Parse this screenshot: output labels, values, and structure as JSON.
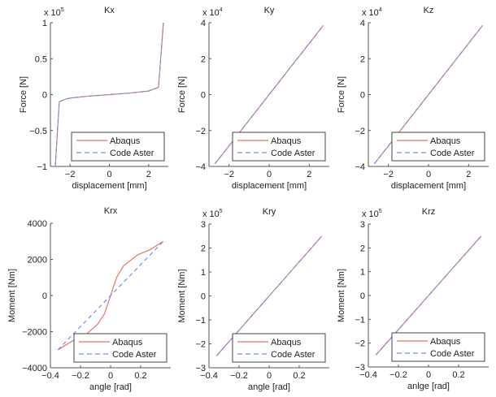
{
  "figure": {
    "colors": {
      "abaqus": "#e8776b",
      "code_aster": "#6b8ff0",
      "axis": "#555555",
      "legend_border": "#444444"
    }
  },
  "chart_data": [
    {
      "id": "kx",
      "type": "line",
      "title": "Kx",
      "xlabel": "displacement [mm]",
      "ylabel": "Force [N]",
      "y_multiplier_label": "x 10",
      "y_multiplier_exp": "5",
      "xlim": [
        -3,
        3
      ],
      "ylim": [
        -1,
        1
      ],
      "xticks": [
        -2,
        0,
        2
      ],
      "xtick_labels": [
        "−2",
        "0",
        "2"
      ],
      "yticks": [
        -1,
        -0.5,
        0,
        0.5,
        1
      ],
      "ytick_labels": [
        "−1",
        "−0.5",
        "0",
        "0.5",
        "1"
      ],
      "grid": false,
      "legend": {
        "position": "bottom-right",
        "entries": [
          "Abaqus",
          "Code Aster"
        ]
      },
      "series": [
        {
          "name": "Abaqus",
          "style": "solid",
          "x": [
            -2.75,
            -2.55,
            -2.2,
            -1.9,
            -1.0,
            0,
            1.0,
            2.0,
            2.5,
            2.75
          ],
          "y": [
            -1.0,
            -0.1,
            -0.06,
            -0.045,
            -0.02,
            0,
            0.02,
            0.05,
            0.1,
            1.0
          ]
        },
        {
          "name": "Code Aster",
          "style": "dashed",
          "x": [
            -2.75,
            -2.55,
            -2.2,
            -1.9,
            -1.0,
            0,
            1.0,
            2.0,
            2.5,
            2.75
          ],
          "y": [
            -1.0,
            -0.1,
            -0.06,
            -0.045,
            -0.02,
            0,
            0.02,
            0.05,
            0.1,
            1.0
          ]
        }
      ]
    },
    {
      "id": "ky",
      "type": "line",
      "title": "Ky",
      "xlabel": "displacement [mm]",
      "ylabel": "Force [N]",
      "y_multiplier_label": "x 10",
      "y_multiplier_exp": "4",
      "xlim": [
        -3,
        3
      ],
      "ylim": [
        -4,
        4
      ],
      "xticks": [
        -2,
        0,
        2
      ],
      "xtick_labels": [
        "−2",
        "0",
        "2"
      ],
      "yticks": [
        -4,
        -2,
        0,
        2,
        4
      ],
      "ytick_labels": [
        "−4",
        "−2",
        "0",
        "2",
        "4"
      ],
      "grid": false,
      "legend": {
        "position": "bottom-right",
        "entries": [
          "Abaqus",
          "Code Aster"
        ]
      },
      "series": [
        {
          "name": "Abaqus",
          "style": "solid",
          "x": [
            -2.7,
            2.7
          ],
          "y": [
            -3.85,
            3.85
          ]
        },
        {
          "name": "Code Aster",
          "style": "dashed",
          "x": [
            -2.7,
            2.7
          ],
          "y": [
            -3.85,
            3.85
          ]
        }
      ]
    },
    {
      "id": "kz",
      "type": "line",
      "title": "Kz",
      "xlabel": "displacement [mm]",
      "ylabel": "Force [N]",
      "y_multiplier_label": "x 10",
      "y_multiplier_exp": "4",
      "xlim": [
        -3,
        3
      ],
      "ylim": [
        -4,
        4
      ],
      "xticks": [
        -2,
        0,
        2
      ],
      "xtick_labels": [
        "−2",
        "0",
        "2"
      ],
      "yticks": [
        -4,
        -2,
        0,
        2,
        4
      ],
      "ytick_labels": [
        "−4",
        "−2",
        "0",
        "2",
        "4"
      ],
      "grid": false,
      "legend": {
        "position": "bottom-right",
        "entries": [
          "Abaqus",
          "Code Aster"
        ]
      },
      "series": [
        {
          "name": "Abaqus",
          "style": "solid",
          "x": [
            -2.7,
            2.7
          ],
          "y": [
            -3.85,
            3.85
          ]
        },
        {
          "name": "Code Aster",
          "style": "dashed",
          "x": [
            -2.7,
            2.7
          ],
          "y": [
            -3.85,
            3.85
          ]
        }
      ]
    },
    {
      "id": "krx",
      "type": "line",
      "title": "Krx",
      "xlabel": "angle [rad]",
      "ylabel": "Moment [Nm]",
      "y_multiplier_label": "",
      "y_multiplier_exp": "",
      "xlim": [
        -0.4,
        0.4
      ],
      "ylim": [
        -4000,
        4000
      ],
      "xticks": [
        -0.4,
        -0.2,
        0,
        0.2
      ],
      "xtick_labels": [
        "−0.4",
        "−0.2",
        "0",
        "0.2"
      ],
      "yticks": [
        -4000,
        -2000,
        0,
        2000,
        4000
      ],
      "ytick_labels": [
        "−4000",
        "−2000",
        "0",
        "2000",
        "4000"
      ],
      "grid": false,
      "legend": {
        "position": "bottom-right",
        "entries": [
          "Abaqus",
          "Code Aster"
        ]
      },
      "series": [
        {
          "name": "Abaqus",
          "style": "solid",
          "x": [
            -0.35,
            -0.26,
            -0.17,
            -0.087,
            -0.04,
            0,
            0.04,
            0.087,
            0.18,
            0.265,
            0.35
          ],
          "y": [
            -3000,
            -2550,
            -2200,
            -1600,
            -1000,
            0,
            1000,
            1650,
            2250,
            2550,
            3000
          ]
        },
        {
          "name": "Code Aster",
          "style": "dashed",
          "x": [
            -0.35,
            0.35
          ],
          "y": [
            -3000,
            3000
          ]
        }
      ]
    },
    {
      "id": "kry",
      "type": "line",
      "title": "Kry",
      "xlabel": "angle [rad]",
      "ylabel": "Moment [Nm]",
      "y_multiplier_label": "x 10",
      "y_multiplier_exp": "5",
      "xlim": [
        -0.4,
        0.4
      ],
      "ylim": [
        -3,
        3
      ],
      "xticks": [
        -0.4,
        -0.2,
        0,
        0.2
      ],
      "xtick_labels": [
        "−0.4",
        "−0.2",
        "0",
        "0.2"
      ],
      "yticks": [
        -3,
        -2,
        -1,
        0,
        1,
        2,
        3
      ],
      "ytick_labels": [
        "−3",
        "−2",
        "−1",
        "0",
        "1",
        "2",
        "3"
      ],
      "grid": false,
      "legend": {
        "position": "bottom-right",
        "entries": [
          "Abaqus",
          "Code Aster"
        ]
      },
      "series": [
        {
          "name": "Abaqus",
          "style": "solid",
          "x": [
            -0.35,
            0.35
          ],
          "y": [
            -2.5,
            2.5
          ]
        },
        {
          "name": "Code Aster",
          "style": "dashed",
          "x": [
            -0.35,
            0.35
          ],
          "y": [
            -2.5,
            2.5
          ]
        }
      ]
    },
    {
      "id": "krz",
      "type": "line",
      "title": "Krz",
      "xlabel": "anlge [rad]",
      "ylabel": "Moment [Nm]",
      "y_multiplier_label": "x 10",
      "y_multiplier_exp": "5",
      "xlim": [
        -0.4,
        0.4
      ],
      "ylim": [
        -3,
        3
      ],
      "xticks": [
        -0.4,
        -0.2,
        0,
        0.2
      ],
      "xtick_labels": [
        "−0.4",
        "−0.2",
        "0",
        "0.2"
      ],
      "yticks": [
        -3,
        -2,
        -1,
        0,
        1,
        2,
        3
      ],
      "ytick_labels": [
        "−3",
        "−2",
        "−1",
        "0",
        "1",
        "2",
        "3"
      ],
      "grid": false,
      "legend": {
        "position": "bottom-right",
        "entries": [
          "Abaqus",
          "Code Aster"
        ]
      },
      "series": [
        {
          "name": "Abaqus",
          "style": "solid",
          "x": [
            -0.35,
            0.35
          ],
          "y": [
            -2.5,
            2.5
          ]
        },
        {
          "name": "Code Aster",
          "style": "dashed",
          "x": [
            -0.35,
            0.35
          ],
          "y": [
            -2.5,
            2.5
          ]
        }
      ]
    }
  ]
}
